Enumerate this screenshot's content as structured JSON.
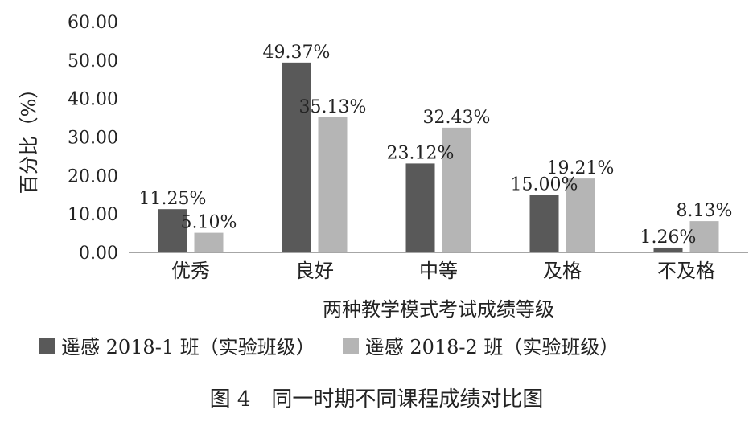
{
  "chart_data": {
    "type": "bar",
    "categories": [
      "优秀",
      "良好",
      "中等",
      "及格",
      "不及格"
    ],
    "series": [
      {
        "name": "遥感 2018-1 班（实验班级）",
        "values": [
          11.25,
          49.37,
          23.12,
          15.0,
          1.26
        ],
        "labels": [
          "11.25%",
          "49.37%",
          "23.12%",
          "15.00%",
          "1.26%"
        ],
        "color": "#595959"
      },
      {
        "name": "遥感 2018-2 班（实验班级）",
        "values": [
          5.1,
          35.13,
          32.43,
          19.21,
          8.13
        ],
        "labels": [
          "5.10%",
          "35.13%",
          "32.43%",
          "19.21%",
          "8.13%"
        ],
        "color": "#b5b5b5"
      }
    ],
    "ylim": [
      0,
      60
    ],
    "yticks": [
      "0.00",
      "10.00",
      "20.00",
      "30.00",
      "40.00",
      "50.00",
      "60.00"
    ],
    "ylabel": "百分比（%）",
    "xlabel": "两种教学模式考试成绩等级",
    "legend_position": "bottom",
    "grid": false
  },
  "caption": "图 4　同一时期不同课程成绩对比图"
}
